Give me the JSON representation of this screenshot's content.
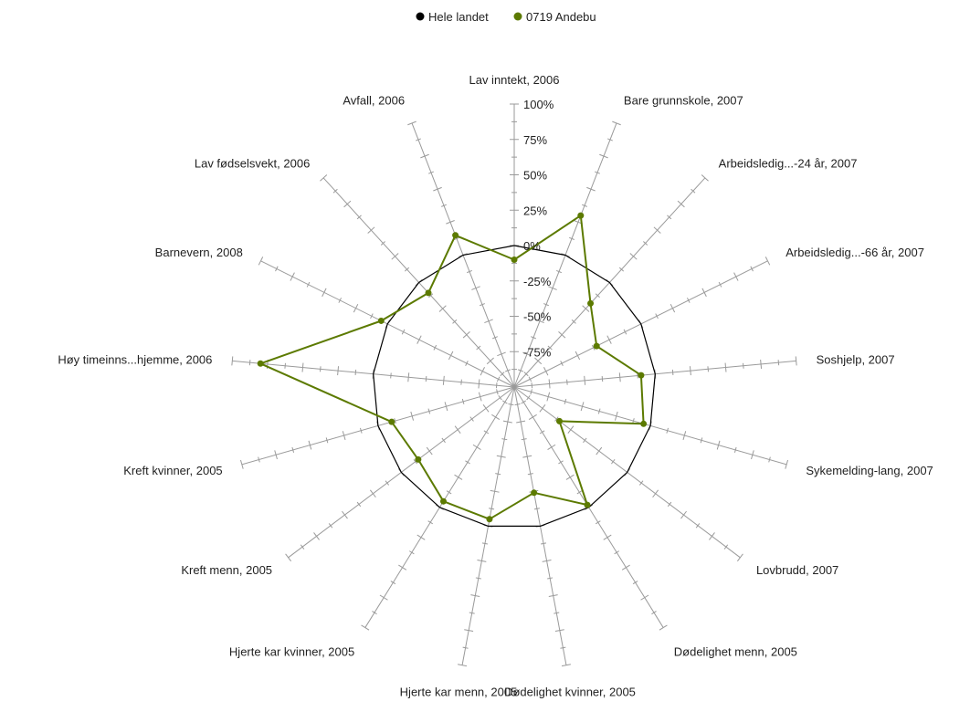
{
  "chart_data": {
    "type": "radar",
    "title": "",
    "legend": {
      "placement": "top-center",
      "entries": [
        {
          "name": "Hele landet",
          "color": "#000000"
        },
        {
          "name": "0719 Andebu",
          "color": "#5c7a00"
        }
      ]
    },
    "categories": [
      "Lav inntekt, 2006",
      "Bare grunnskole, 2007",
      "Arbeidsledig...-24 år, 2007",
      "Arbeidsledig...-66 år, 2007",
      "Soshjelp, 2007",
      "Sykemelding-lang, 2007",
      "Lovbrudd, 2007",
      "Dødelighet menn, 2005",
      "Dødelighet kvinner, 2005",
      "Hjerte kar menn, 2005",
      "Hjerte kar kvinner, 2005",
      "Kreft menn, 2005",
      "Kreft kvinner, 2005",
      "Høy timeinns...hjemme, 2006",
      "Barnevern, 2008",
      "Lav fødselsvekt, 2006",
      "Avfall, 2006"
    ],
    "radial_axis": {
      "min": -100,
      "max": 100,
      "ticks": [
        100,
        75,
        50,
        25,
        0,
        -25,
        -50,
        -75
      ],
      "tick_labels": [
        "100%",
        "75%",
        "50%",
        "25%",
        "0%",
        "-25%",
        "-50%",
        "-75%"
      ],
      "unit": "%"
    },
    "series": [
      {
        "name": "Hele landet",
        "color": "#000000",
        "values": [
          0,
          0,
          0,
          0,
          0,
          0,
          0,
          0,
          0,
          0,
          0,
          0,
          0,
          0,
          0,
          0,
          0
        ]
      },
      {
        "name": "0719 Andebu",
        "color": "#5c7a00",
        "values": [
          -10,
          30,
          -20,
          -35,
          -10,
          -5,
          -60,
          -2,
          -24,
          -5,
          -5,
          -15,
          -10,
          80,
          5,
          -10,
          15
        ]
      }
    ]
  }
}
